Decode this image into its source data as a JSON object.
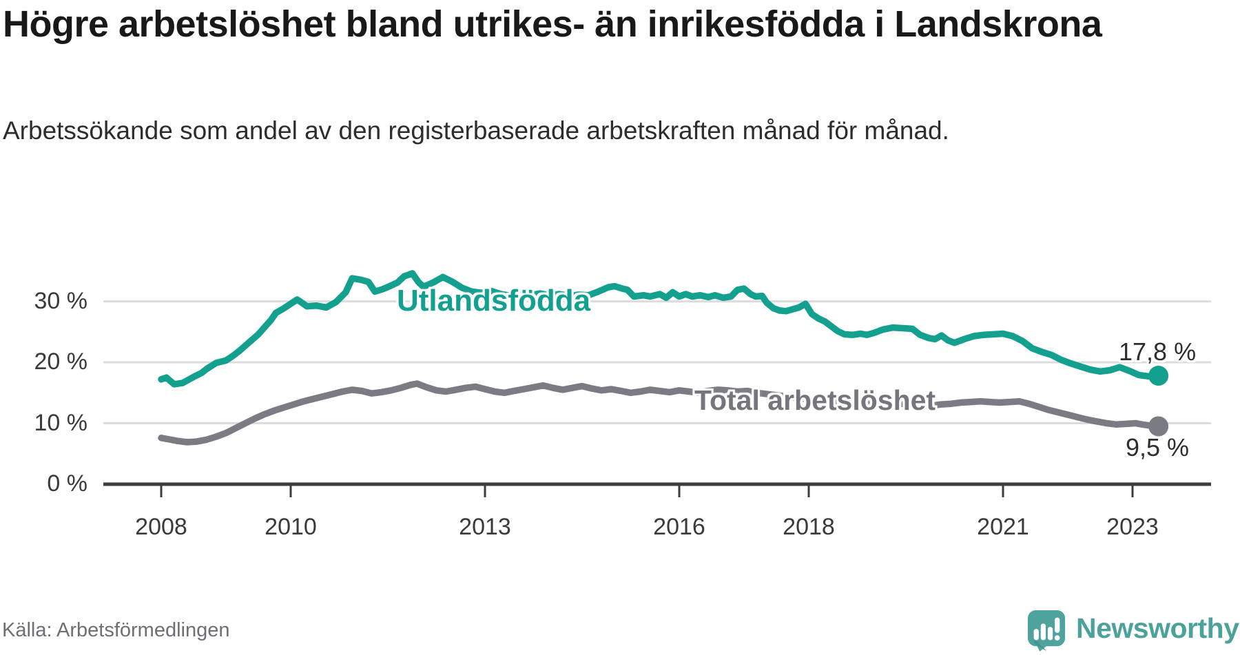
{
  "header": {
    "title": "Högre arbetslöshet bland utrikes- än inrikesfödda i Landskrona",
    "subtitle": "Arbetssökande som andel av den registerbaserade arbetskraften månad för månad."
  },
  "source": {
    "label": "Källa: Arbetsförmedlingen"
  },
  "branding": {
    "name": "Newsworthy",
    "logo_icon": "bar-chart-speech-bubble-icon",
    "brand_color": "#4ea49d"
  },
  "chart_data": {
    "type": "line",
    "title": "Högre arbetslöshet bland utrikes- än inrikesfödda i Landskrona",
    "subtitle": "Arbetssökande som andel av den registerbaserade arbetskraften månad för månad.",
    "unit": "%",
    "grid": "horizontal",
    "legend": "inline-labels",
    "colors": {
      "utlandsfodda": "#13a08f",
      "total": "#7b7b84",
      "gridline": "#dcdcdc",
      "axis": "#3d3d3d"
    },
    "x_axis": {
      "ticks": [
        2008,
        2010,
        2013,
        2016,
        2018,
        2021,
        2023
      ],
      "tick_labels": [
        "2008",
        "2010",
        "2013",
        "2016",
        "2018",
        "2021",
        "2023"
      ],
      "range_years": [
        2007.1,
        2024.2
      ]
    },
    "y_axis": {
      "ticks": [
        0,
        10,
        20,
        30
      ],
      "tick_labels": [
        "0 %",
        "10 %",
        "20 %",
        "30 %"
      ],
      "range": [
        0,
        38
      ]
    },
    "series": [
      {
        "name": "Utlandsfödda",
        "color": "#13a08f",
        "end_label": "17,8 %",
        "end_value": 17.8,
        "points": [
          [
            2008.0,
            17.2
          ],
          [
            2008.08,
            17.5
          ],
          [
            2008.2,
            16.4
          ],
          [
            2008.33,
            16.6
          ],
          [
            2008.5,
            17.6
          ],
          [
            2008.63,
            18.3
          ],
          [
            2008.7,
            18.9
          ],
          [
            2008.85,
            19.9
          ],
          [
            2009.0,
            20.3
          ],
          [
            2009.1,
            21.0
          ],
          [
            2009.2,
            21.8
          ],
          [
            2009.35,
            23.2
          ],
          [
            2009.5,
            24.6
          ],
          [
            2009.6,
            25.8
          ],
          [
            2009.7,
            27.0
          ],
          [
            2009.77,
            28.1
          ],
          [
            2009.9,
            28.9
          ],
          [
            2010.1,
            30.3
          ],
          [
            2010.25,
            29.2
          ],
          [
            2010.4,
            29.3
          ],
          [
            2010.55,
            29.0
          ],
          [
            2010.7,
            29.9
          ],
          [
            2010.85,
            31.5
          ],
          [
            2010.95,
            33.8
          ],
          [
            2011.1,
            33.5
          ],
          [
            2011.2,
            33.2
          ],
          [
            2011.3,
            31.6
          ],
          [
            2011.42,
            32.0
          ],
          [
            2011.55,
            32.6
          ],
          [
            2011.65,
            33.1
          ],
          [
            2011.75,
            34.1
          ],
          [
            2011.88,
            34.6
          ],
          [
            2011.97,
            33.2
          ],
          [
            2012.05,
            32.4
          ],
          [
            2012.2,
            33.1
          ],
          [
            2012.35,
            34.0
          ],
          [
            2012.5,
            33.2
          ],
          [
            2012.65,
            32.2
          ],
          [
            2012.8,
            31.6
          ],
          [
            2012.95,
            31.4
          ],
          [
            2013.1,
            31.7
          ],
          [
            2013.25,
            31.2
          ],
          [
            2013.4,
            30.9
          ],
          [
            2013.55,
            31.2
          ],
          [
            2013.7,
            31.0
          ],
          [
            2013.85,
            31.3
          ],
          [
            2014.0,
            31.0
          ],
          [
            2014.15,
            31.2
          ],
          [
            2014.3,
            30.9
          ],
          [
            2014.45,
            31.1
          ],
          [
            2014.6,
            31.0
          ],
          [
            2014.75,
            31.6
          ],
          [
            2014.9,
            32.3
          ],
          [
            2015.0,
            32.5
          ],
          [
            2015.12,
            32.1
          ],
          [
            2015.2,
            31.9
          ],
          [
            2015.3,
            30.8
          ],
          [
            2015.45,
            31.0
          ],
          [
            2015.55,
            30.8
          ],
          [
            2015.7,
            31.2
          ],
          [
            2015.8,
            30.6
          ],
          [
            2015.9,
            31.5
          ],
          [
            2016.0,
            30.8
          ],
          [
            2016.1,
            31.2
          ],
          [
            2016.2,
            30.8
          ],
          [
            2016.32,
            31.0
          ],
          [
            2016.45,
            30.7
          ],
          [
            2016.55,
            31.0
          ],
          [
            2016.68,
            30.6
          ],
          [
            2016.8,
            30.8
          ],
          [
            2016.9,
            31.9
          ],
          [
            2017.0,
            32.1
          ],
          [
            2017.1,
            31.2
          ],
          [
            2017.18,
            30.8
          ],
          [
            2017.28,
            30.9
          ],
          [
            2017.35,
            29.8
          ],
          [
            2017.45,
            28.9
          ],
          [
            2017.55,
            28.5
          ],
          [
            2017.65,
            28.4
          ],
          [
            2017.75,
            28.7
          ],
          [
            2017.85,
            29.0
          ],
          [
            2017.95,
            29.6
          ],
          [
            2018.05,
            27.9
          ],
          [
            2018.15,
            27.2
          ],
          [
            2018.25,
            26.7
          ],
          [
            2018.35,
            25.9
          ],
          [
            2018.45,
            25.1
          ],
          [
            2018.55,
            24.6
          ],
          [
            2018.68,
            24.5
          ],
          [
            2018.8,
            24.7
          ],
          [
            2018.9,
            24.5
          ],
          [
            2019.0,
            24.8
          ],
          [
            2019.15,
            25.4
          ],
          [
            2019.3,
            25.7
          ],
          [
            2019.45,
            25.6
          ],
          [
            2019.6,
            25.5
          ],
          [
            2019.72,
            24.5
          ],
          [
            2019.85,
            24.0
          ],
          [
            2019.95,
            23.8
          ],
          [
            2020.05,
            24.4
          ],
          [
            2020.15,
            23.6
          ],
          [
            2020.25,
            23.2
          ],
          [
            2020.4,
            23.8
          ],
          [
            2020.55,
            24.3
          ],
          [
            2020.7,
            24.5
          ],
          [
            2020.85,
            24.6
          ],
          [
            2021.0,
            24.7
          ],
          [
            2021.15,
            24.3
          ],
          [
            2021.3,
            23.5
          ],
          [
            2021.45,
            22.3
          ],
          [
            2021.6,
            21.7
          ],
          [
            2021.75,
            21.2
          ],
          [
            2021.9,
            20.4
          ],
          [
            2022.05,
            19.8
          ],
          [
            2022.2,
            19.3
          ],
          [
            2022.35,
            18.8
          ],
          [
            2022.5,
            18.5
          ],
          [
            2022.65,
            18.7
          ],
          [
            2022.8,
            19.2
          ],
          [
            2022.95,
            18.6
          ],
          [
            2023.1,
            17.9
          ],
          [
            2023.25,
            17.7
          ],
          [
            2023.4,
            17.8
          ]
        ]
      },
      {
        "name": "Total arbetslöshet",
        "color": "#7b7b84",
        "end_label": "9,5 %",
        "end_value": 9.5,
        "points": [
          [
            2008.0,
            7.6
          ],
          [
            2008.1,
            7.4
          ],
          [
            2008.25,
            7.1
          ],
          [
            2008.4,
            6.9
          ],
          [
            2008.55,
            7.0
          ],
          [
            2008.7,
            7.3
          ],
          [
            2008.85,
            7.8
          ],
          [
            2009.0,
            8.4
          ],
          [
            2009.15,
            9.2
          ],
          [
            2009.3,
            10.0
          ],
          [
            2009.45,
            10.8
          ],
          [
            2009.6,
            11.5
          ],
          [
            2009.75,
            12.1
          ],
          [
            2009.9,
            12.6
          ],
          [
            2010.05,
            13.1
          ],
          [
            2010.2,
            13.6
          ],
          [
            2010.35,
            14.0
          ],
          [
            2010.5,
            14.4
          ],
          [
            2010.65,
            14.8
          ],
          [
            2010.8,
            15.2
          ],
          [
            2010.95,
            15.5
          ],
          [
            2011.1,
            15.3
          ],
          [
            2011.25,
            14.9
          ],
          [
            2011.4,
            15.1
          ],
          [
            2011.55,
            15.4
          ],
          [
            2011.7,
            15.8
          ],
          [
            2011.85,
            16.3
          ],
          [
            2011.95,
            16.5
          ],
          [
            2012.1,
            15.9
          ],
          [
            2012.25,
            15.4
          ],
          [
            2012.4,
            15.2
          ],
          [
            2012.55,
            15.5
          ],
          [
            2012.7,
            15.8
          ],
          [
            2012.85,
            16.0
          ],
          [
            2013.0,
            15.6
          ],
          [
            2013.15,
            15.2
          ],
          [
            2013.3,
            15.0
          ],
          [
            2013.45,
            15.3
          ],
          [
            2013.6,
            15.6
          ],
          [
            2013.75,
            15.9
          ],
          [
            2013.9,
            16.2
          ],
          [
            2014.05,
            15.8
          ],
          [
            2014.2,
            15.5
          ],
          [
            2014.35,
            15.8
          ],
          [
            2014.5,
            16.1
          ],
          [
            2014.65,
            15.7
          ],
          [
            2014.8,
            15.4
          ],
          [
            2014.95,
            15.6
          ],
          [
            2015.1,
            15.3
          ],
          [
            2015.25,
            15.0
          ],
          [
            2015.4,
            15.2
          ],
          [
            2015.55,
            15.5
          ],
          [
            2015.7,
            15.3
          ],
          [
            2015.85,
            15.1
          ],
          [
            2016.0,
            15.4
          ],
          [
            2016.15,
            15.2
          ],
          [
            2016.3,
            15.0
          ],
          [
            2016.45,
            15.3
          ],
          [
            2016.6,
            15.5
          ],
          [
            2016.75,
            15.4
          ],
          [
            2016.9,
            15.2
          ],
          [
            2017.05,
            15.3
          ],
          [
            2017.2,
            15.0
          ],
          [
            2017.35,
            14.8
          ],
          [
            2017.5,
            14.6
          ],
          [
            2017.65,
            14.4
          ],
          [
            2017.8,
            14.2
          ],
          [
            2017.95,
            14.0
          ],
          [
            2018.1,
            13.9
          ],
          [
            2018.25,
            13.7
          ],
          [
            2018.4,
            13.6
          ],
          [
            2018.55,
            13.5
          ],
          [
            2018.7,
            13.4
          ],
          [
            2018.85,
            13.5
          ],
          [
            2019.0,
            13.6
          ],
          [
            2019.15,
            13.4
          ],
          [
            2019.3,
            13.3
          ],
          [
            2019.45,
            13.2
          ],
          [
            2019.6,
            13.1
          ],
          [
            2019.75,
            13.0
          ],
          [
            2019.9,
            12.9
          ],
          [
            2020.05,
            13.1
          ],
          [
            2020.2,
            13.2
          ],
          [
            2020.35,
            13.4
          ],
          [
            2020.5,
            13.5
          ],
          [
            2020.65,
            13.6
          ],
          [
            2020.8,
            13.5
          ],
          [
            2020.95,
            13.4
          ],
          [
            2021.1,
            13.5
          ],
          [
            2021.25,
            13.6
          ],
          [
            2021.4,
            13.2
          ],
          [
            2021.55,
            12.7
          ],
          [
            2021.7,
            12.2
          ],
          [
            2021.85,
            11.8
          ],
          [
            2022.0,
            11.4
          ],
          [
            2022.15,
            11.0
          ],
          [
            2022.3,
            10.6
          ],
          [
            2022.45,
            10.3
          ],
          [
            2022.6,
            10.0
          ],
          [
            2022.75,
            9.8
          ],
          [
            2022.9,
            9.9
          ],
          [
            2023.05,
            10.0
          ],
          [
            2023.15,
            9.8
          ],
          [
            2023.28,
            9.6
          ],
          [
            2023.4,
            9.5
          ]
        ]
      }
    ]
  }
}
